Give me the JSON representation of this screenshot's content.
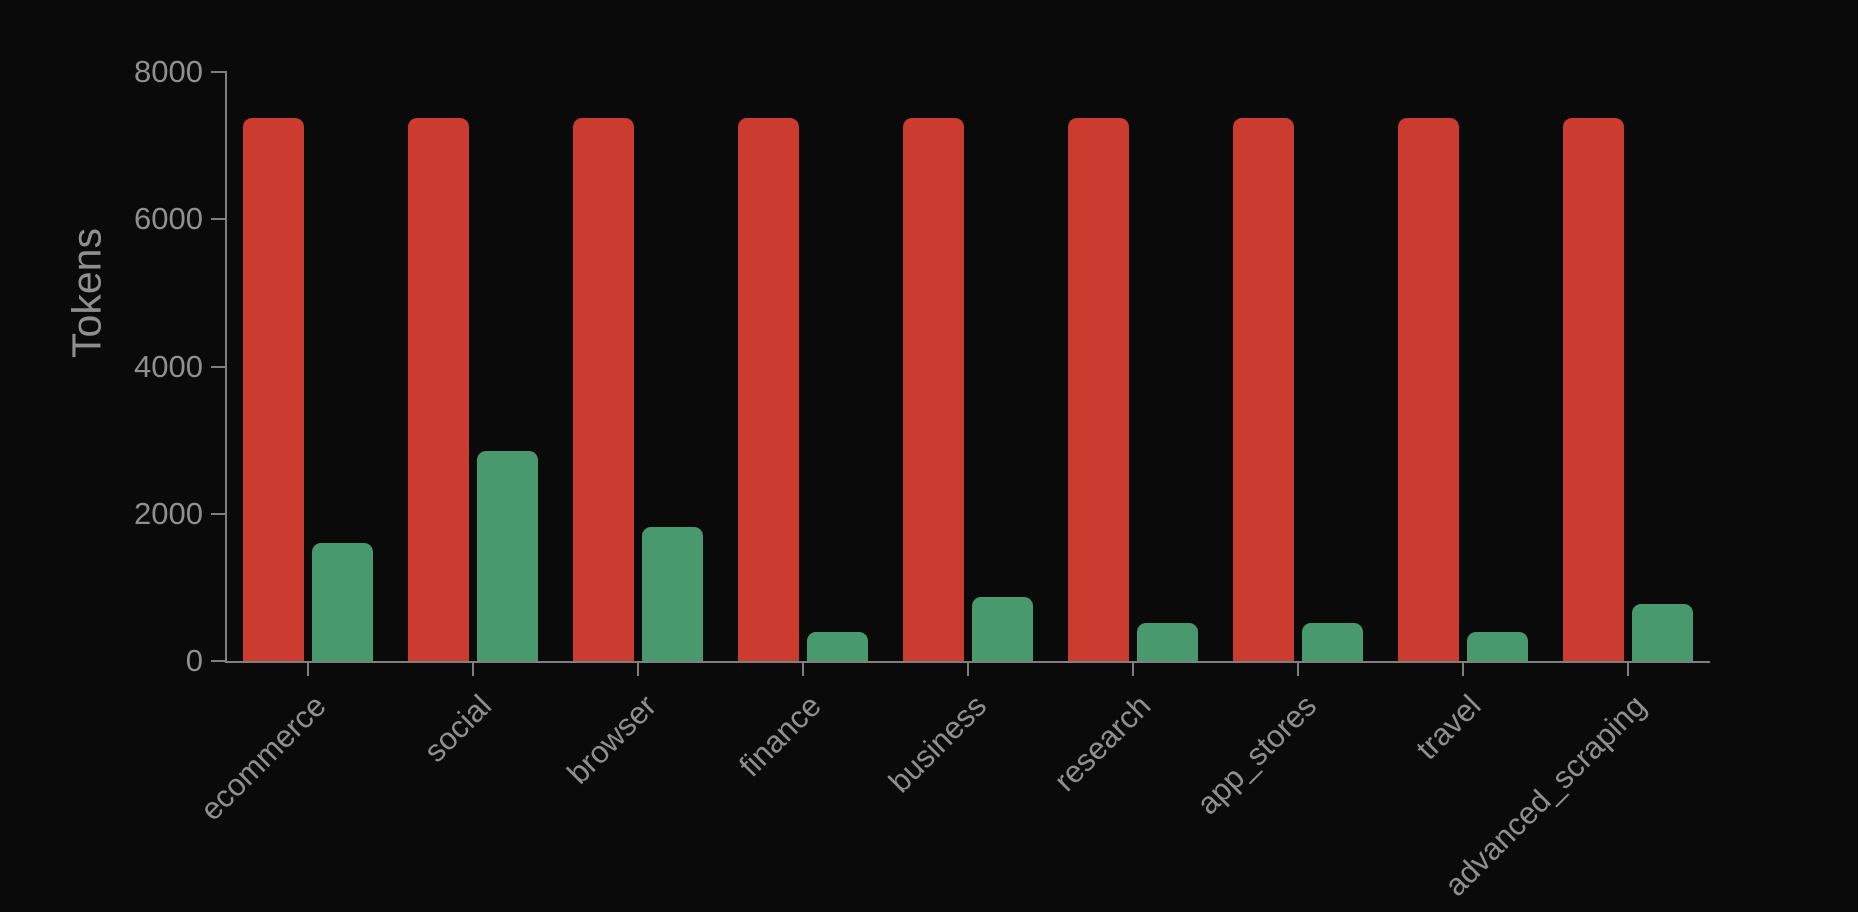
{
  "chart_data": {
    "type": "bar",
    "title": "",
    "xlabel": "",
    "ylabel": "Tokens",
    "categories": [
      "ecommerce",
      "social",
      "browser",
      "finance",
      "business",
      "research",
      "app_stores",
      "travel",
      "advanced_scraping"
    ],
    "series": [
      {
        "name": "red",
        "color": "#cb3b30",
        "values": [
          7370,
          7370,
          7370,
          7370,
          7370,
          7370,
          7370,
          7370,
          7370
        ]
      },
      {
        "name": "green",
        "color": "#489a6e",
        "values": [
          1600,
          2850,
          1820,
          400,
          870,
          520,
          510,
          400,
          780
        ]
      }
    ],
    "ylim": [
      0,
      8000
    ],
    "yticks": [
      0,
      2000,
      4000,
      6000,
      8000
    ],
    "grid": false,
    "legend": "none",
    "background": "#0a0a0a",
    "axis_color": "#7f7f7f",
    "text_color": "#8f8f8f"
  }
}
